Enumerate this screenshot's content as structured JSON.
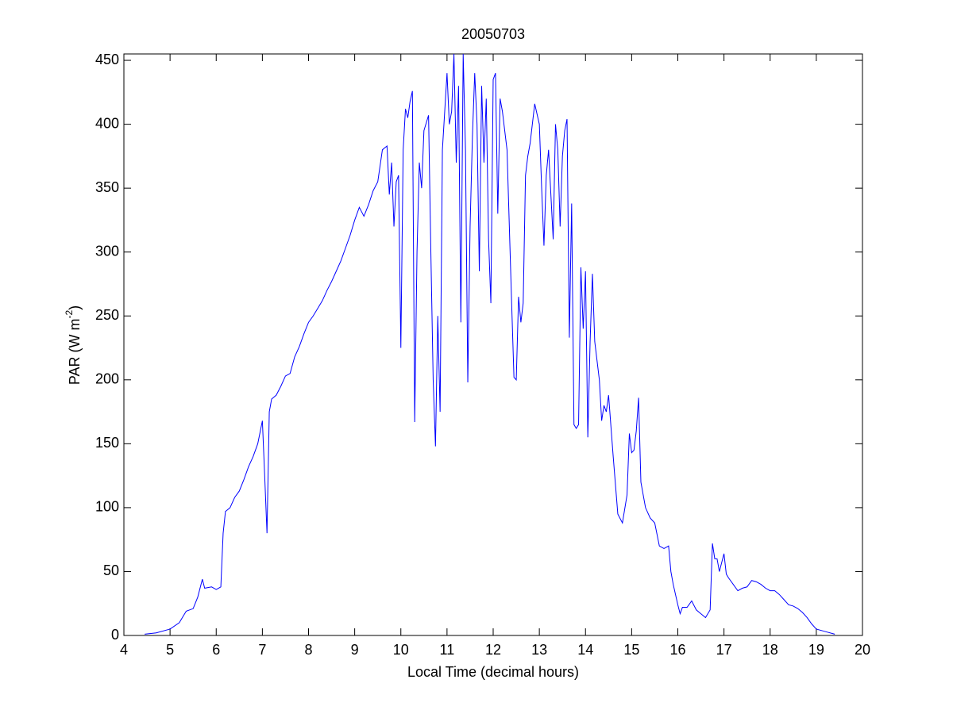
{
  "chart_data": {
    "type": "line",
    "title": "20050703",
    "xlabel": "Local Time (decimal hours)",
    "ylabel": {
      "text": "PAR (W m",
      "sup": "-2",
      "suffix": ")"
    },
    "xlim": [
      4,
      20
    ],
    "ylim": [
      0,
      455
    ],
    "xticks": [
      4,
      5,
      6,
      7,
      8,
      9,
      10,
      11,
      12,
      13,
      14,
      15,
      16,
      17,
      18,
      19,
      20
    ],
    "yticks": [
      0,
      50,
      100,
      150,
      200,
      250,
      300,
      350,
      400,
      450
    ],
    "grid": false,
    "series": [
      {
        "color": "#0000ff",
        "x": [
          4.45,
          4.7,
          5.0,
          5.2,
          5.35,
          5.5,
          5.6,
          5.7,
          5.75,
          5.9,
          6.0,
          6.1,
          6.15,
          6.2,
          6.3,
          6.4,
          6.5,
          6.6,
          6.7,
          6.8,
          6.9,
          7.0,
          7.05,
          7.1,
          7.15,
          7.2,
          7.3,
          7.4,
          7.5,
          7.6,
          7.7,
          7.8,
          7.9,
          8.0,
          8.1,
          8.2,
          8.3,
          8.4,
          8.5,
          8.6,
          8.7,
          8.8,
          8.9,
          9.0,
          9.1,
          9.2,
          9.3,
          9.4,
          9.5,
          9.6,
          9.7,
          9.75,
          9.8,
          9.85,
          9.9,
          9.95,
          10.0,
          10.05,
          10.1,
          10.15,
          10.2,
          10.25,
          10.3,
          10.35,
          10.4,
          10.45,
          10.5,
          10.6,
          10.65,
          10.7,
          10.75,
          10.8,
          10.85,
          10.9,
          10.95,
          11.0,
          11.05,
          11.1,
          11.15,
          11.2,
          11.25,
          11.3,
          11.35,
          11.4,
          11.45,
          11.5,
          11.55,
          11.6,
          11.65,
          11.7,
          11.75,
          11.8,
          11.85,
          11.9,
          11.95,
          12.0,
          12.05,
          12.1,
          12.15,
          12.2,
          12.3,
          12.4,
          12.45,
          12.5,
          12.55,
          12.6,
          12.65,
          12.7,
          12.75,
          12.8,
          12.9,
          13.0,
          13.05,
          13.1,
          13.15,
          13.2,
          13.3,
          13.35,
          13.4,
          13.45,
          13.5,
          13.55,
          13.6,
          13.65,
          13.7,
          13.75,
          13.8,
          13.85,
          13.9,
          13.95,
          14.0,
          14.05,
          14.1,
          14.15,
          14.2,
          14.3,
          14.35,
          14.4,
          14.45,
          14.5,
          14.6,
          14.7,
          14.8,
          14.9,
          14.95,
          15.0,
          15.05,
          15.1,
          15.15,
          15.2,
          15.3,
          15.4,
          15.5,
          15.6,
          15.7,
          15.8,
          15.85,
          15.9,
          16.0,
          16.05,
          16.1,
          16.2,
          16.3,
          16.4,
          16.5,
          16.6,
          16.7,
          16.75,
          16.8,
          16.85,
          16.9,
          17.0,
          17.05,
          17.1,
          17.2,
          17.3,
          17.4,
          17.5,
          17.6,
          17.7,
          17.8,
          17.9,
          18.0,
          18.1,
          18.2,
          18.3,
          18.4,
          18.5,
          18.6,
          18.7,
          18.8,
          18.9,
          19.0,
          19.2,
          19.4
        ],
        "values": [
          1,
          2,
          5,
          10,
          19,
          21,
          30,
          44,
          37,
          38,
          36,
          38,
          80,
          97,
          100,
          108,
          113,
          122,
          132,
          140,
          150,
          168,
          125,
          80,
          175,
          185,
          188,
          195,
          203,
          205,
          218,
          226,
          236,
          245,
          250,
          256,
          262,
          270,
          277,
          285,
          293,
          303,
          313,
          325,
          335,
          328,
          337,
          348,
          355,
          380,
          383,
          345,
          370,
          320,
          355,
          360,
          225,
          380,
          412,
          405,
          418,
          426,
          167,
          300,
          370,
          350,
          395,
          407,
          300,
          200,
          148,
          250,
          175,
          380,
          410,
          440,
          400,
          410,
          455,
          370,
          430,
          245,
          455,
          380,
          198,
          320,
          390,
          440,
          400,
          285,
          430,
          370,
          420,
          310,
          260,
          435,
          440,
          330,
          420,
          410,
          380,
          260,
          202,
          200,
          265,
          245,
          260,
          360,
          375,
          385,
          416,
          400,
          350,
          305,
          360,
          380,
          310,
          400,
          380,
          320,
          375,
          395,
          404,
          233,
          338,
          165,
          162,
          165,
          288,
          240,
          285,
          155,
          230,
          283,
          230,
          200,
          168,
          180,
          175,
          188,
          140,
          95,
          88,
          110,
          158,
          143,
          145,
          160,
          186,
          120,
          100,
          92,
          88,
          70,
          68,
          70,
          50,
          40,
          24,
          17,
          22,
          22,
          27,
          20,
          17,
          14,
          20,
          72,
          60,
          60,
          50,
          64,
          48,
          45,
          40,
          35,
          37,
          38,
          43,
          42,
          40,
          37,
          35,
          35,
          32,
          28,
          24,
          23,
          21,
          18,
          14,
          9,
          5,
          3,
          1
        ]
      }
    ]
  }
}
